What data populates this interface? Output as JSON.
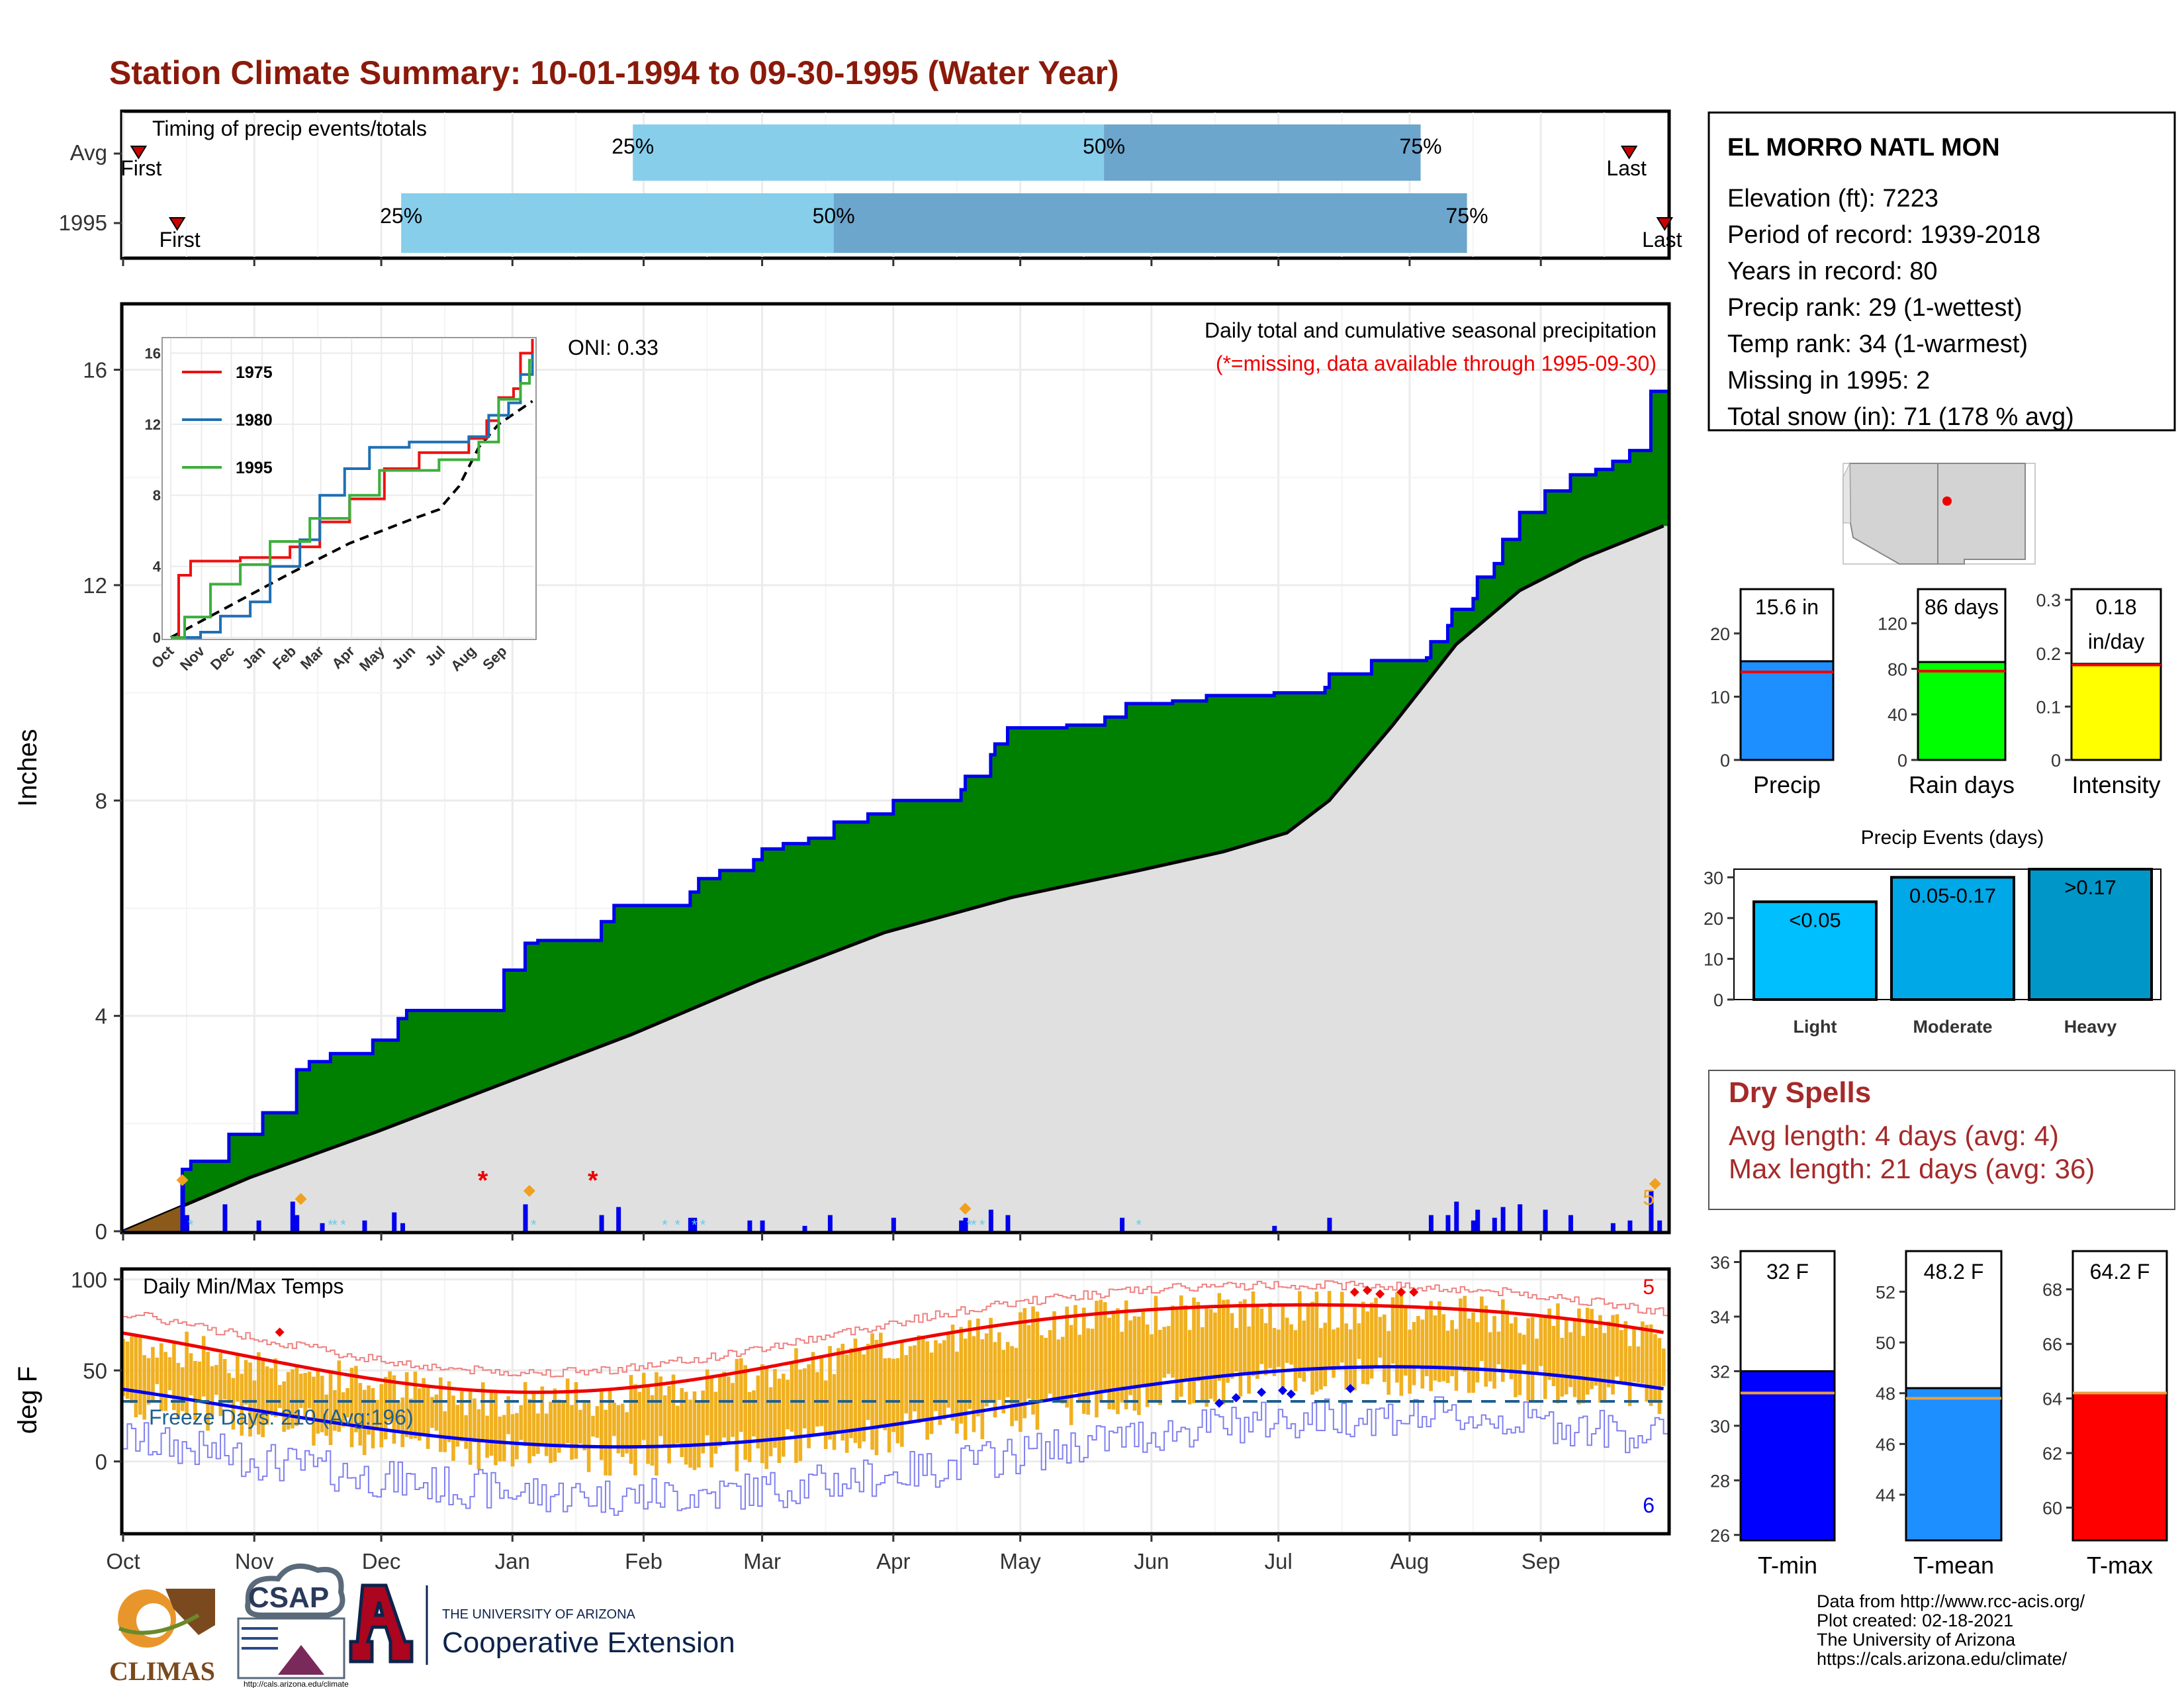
{
  "title": "Station Climate Summary: 10-01-1994 to 09-30-1995 (Water Year)",
  "months": [
    "Oct",
    "Nov",
    "Dec",
    "Jan",
    "Feb",
    "Mar",
    "Apr",
    "May",
    "Jun",
    "Jul",
    "Aug",
    "Sep"
  ],
  "colors": {
    "title": "#8B1A0A",
    "cum_area": "#008000",
    "cum_line": "#0000EE",
    "avg_area": "#E0E0E0",
    "daily_bar": "#0000EE",
    "temp_bar": "#F0B020",
    "tmax_line": "#EE0000",
    "tmin_line": "#0000EE",
    "bar_light": "#00BFFF",
    "bar_mod": "#00A8E8",
    "bar_heavy": "#0096C8",
    "precip": "#1E8FFF",
    "raindays": "#00FF00",
    "intensity": "#FFFF00",
    "tmin": "#0000FF",
    "tmean": "#1E8FFF",
    "tmax": "#FF0000",
    "dry": "#A52A2A"
  },
  "timing": {
    "label": "Timing of precip events/totals",
    "rows": [
      {
        "name": "Avg",
        "first": "First",
        "last": "Last",
        "q25": "25%",
        "q50": "50%",
        "q75": "75%",
        "p_first": 0.01,
        "p25": 0.33,
        "p50": 0.635,
        "p75": 0.84,
        "p_last": 0.975
      },
      {
        "name": "1995",
        "first": "First",
        "last": "Last",
        "q25": "25%",
        "q50": "50%",
        "q75": "75%",
        "p_first": 0.035,
        "p25": 0.18,
        "p50": 0.46,
        "p75": 0.87,
        "p_last": 0.998
      }
    ]
  },
  "precip_chart": {
    "ylabel": "Inches",
    "yticks": [
      0,
      4,
      8,
      12,
      16
    ],
    "ylim": [
      0,
      17.2
    ],
    "title": "Daily total and cumulative seasonal precipitation",
    "subtitle": "(*=missing, data available through 1995-09-30)",
    "oni": "ONI: 0.33",
    "total_snow_corner": "5",
    "cumulative_1995": [
      {
        "day": 0,
        "value": 0
      },
      {
        "day": 14,
        "value": 1.15
      },
      {
        "day": 16,
        "value": 1.3
      },
      {
        "day": 25,
        "value": 1.8
      },
      {
        "day": 33,
        "value": 2.2
      },
      {
        "day": 41,
        "value": 3.0
      },
      {
        "day": 44,
        "value": 3.15
      },
      {
        "day": 49,
        "value": 3.3
      },
      {
        "day": 59,
        "value": 3.55
      },
      {
        "day": 65,
        "value": 3.95
      },
      {
        "day": 67,
        "value": 4.1
      },
      {
        "day": 90,
        "value": 4.85
      },
      {
        "day": 95,
        "value": 5.35
      },
      {
        "day": 98,
        "value": 5.4
      },
      {
        "day": 113,
        "value": 5.75
      },
      {
        "day": 116,
        "value": 6.05
      },
      {
        "day": 134,
        "value": 6.3
      },
      {
        "day": 136,
        "value": 6.55
      },
      {
        "day": 141,
        "value": 6.7
      },
      {
        "day": 149,
        "value": 6.9
      },
      {
        "day": 151,
        "value": 7.1
      },
      {
        "day": 156,
        "value": 7.2
      },
      {
        "day": 162,
        "value": 7.3
      },
      {
        "day": 168,
        "value": 7.6
      },
      {
        "day": 176,
        "value": 7.75
      },
      {
        "day": 182,
        "value": 8.0
      },
      {
        "day": 198,
        "value": 8.2
      },
      {
        "day": 199,
        "value": 8.45
      },
      {
        "day": 205,
        "value": 8.85
      },
      {
        "day": 206,
        "value": 9.05
      },
      {
        "day": 209,
        "value": 9.35
      },
      {
        "day": 223,
        "value": 9.4
      },
      {
        "day": 232,
        "value": 9.55
      },
      {
        "day": 237,
        "value": 9.8
      },
      {
        "day": 248,
        "value": 9.85
      },
      {
        "day": 256,
        "value": 9.95
      },
      {
        "day": 272,
        "value": 10.0
      },
      {
        "day": 284,
        "value": 10.1
      },
      {
        "day": 285,
        "value": 10.35
      },
      {
        "day": 295,
        "value": 10.6
      },
      {
        "day": 308,
        "value": 10.65
      },
      {
        "day": 309,
        "value": 10.95
      },
      {
        "day": 313,
        "value": 11.25
      },
      {
        "day": 314,
        "value": 11.55
      },
      {
        "day": 319,
        "value": 11.75
      },
      {
        "day": 320,
        "value": 12.15
      },
      {
        "day": 324,
        "value": 12.4
      },
      {
        "day": 326,
        "value": 12.85
      },
      {
        "day": 330,
        "value": 13.35
      },
      {
        "day": 336,
        "value": 13.75
      },
      {
        "day": 342,
        "value": 14.05
      },
      {
        "day": 348,
        "value": 14.15
      },
      {
        "day": 352,
        "value": 14.3
      },
      {
        "day": 356,
        "value": 14.5
      },
      {
        "day": 361,
        "value": 15.6
      },
      {
        "day": 364,
        "value": 15.6
      }
    ],
    "average_cumulative": [
      {
        "day": 0,
        "value": 0
      },
      {
        "day": 30,
        "value": 1.0
      },
      {
        "day": 60,
        "value": 1.85
      },
      {
        "day": 90,
        "value": 2.75
      },
      {
        "day": 120,
        "value": 3.65
      },
      {
        "day": 150,
        "value": 4.65
      },
      {
        "day": 180,
        "value": 5.55
      },
      {
        "day": 210,
        "value": 6.2
      },
      {
        "day": 240,
        "value": 6.7
      },
      {
        "day": 260,
        "value": 7.05
      },
      {
        "day": 275,
        "value": 7.4
      },
      {
        "day": 285,
        "value": 8.0
      },
      {
        "day": 300,
        "value": 9.4
      },
      {
        "day": 315,
        "value": 10.9
      },
      {
        "day": 330,
        "value": 11.9
      },
      {
        "day": 345,
        "value": 12.5
      },
      {
        "day": 364,
        "value": 13.1
      }
    ],
    "daily_bars": [
      {
        "day": 14,
        "value": 0.95
      },
      {
        "day": 15,
        "value": 0.3
      },
      {
        "day": 24,
        "value": 0.5
      },
      {
        "day": 32,
        "value": 0.2
      },
      {
        "day": 40,
        "value": 0.55
      },
      {
        "day": 41,
        "value": 0.3
      },
      {
        "day": 47,
        "value": 0.15
      },
      {
        "day": 57,
        "value": 0.2
      },
      {
        "day": 64,
        "value": 0.35
      },
      {
        "day": 66,
        "value": 0.15
      },
      {
        "day": 95,
        "value": 0.5
      },
      {
        "day": 113,
        "value": 0.3
      },
      {
        "day": 117,
        "value": 0.45
      },
      {
        "day": 134,
        "value": 0.25
      },
      {
        "day": 135,
        "value": 0.25
      },
      {
        "day": 148,
        "value": 0.2
      },
      {
        "day": 151,
        "value": 0.2
      },
      {
        "day": 161,
        "value": 0.1
      },
      {
        "day": 167,
        "value": 0.3
      },
      {
        "day": 182,
        "value": 0.25
      },
      {
        "day": 198,
        "value": 0.2
      },
      {
        "day": 199,
        "value": 0.25
      },
      {
        "day": 205,
        "value": 0.4
      },
      {
        "day": 209,
        "value": 0.3
      },
      {
        "day": 236,
        "value": 0.25
      },
      {
        "day": 272,
        "value": 0.1
      },
      {
        "day": 285,
        "value": 0.25
      },
      {
        "day": 309,
        "value": 0.3
      },
      {
        "day": 313,
        "value": 0.3
      },
      {
        "day": 315,
        "value": 0.55
      },
      {
        "day": 319,
        "value": 0.2
      },
      {
        "day": 320,
        "value": 0.4
      },
      {
        "day": 324,
        "value": 0.25
      },
      {
        "day": 326,
        "value": 0.45
      },
      {
        "day": 330,
        "value": 0.5
      },
      {
        "day": 336,
        "value": 0.4
      },
      {
        "day": 342,
        "value": 0.3
      },
      {
        "day": 352,
        "value": 0.15
      },
      {
        "day": 356,
        "value": 0.2
      },
      {
        "day": 361,
        "value": 0.75
      },
      {
        "day": 363,
        "value": 0.2
      }
    ],
    "missing_days": [
      85,
      111
    ],
    "snow_days": [
      14,
      42,
      96,
      199,
      362
    ],
    "inset": {
      "yticks": [
        0,
        4,
        8,
        12,
        16
      ],
      "legend": [
        "1975",
        "1980",
        "1995"
      ],
      "series_colors": [
        "#EE1111",
        "#1F6FB4",
        "#3CAF3C"
      ],
      "months": [
        "Oct",
        "Nov",
        "Dec",
        "Jan",
        "Feb",
        "Mar",
        "Apr",
        "May",
        "Jun",
        "Jul",
        "Aug",
        "Sep"
      ]
    }
  },
  "temp_chart": {
    "ylabel": "deg F",
    "yticks": [
      0,
      50,
      100
    ],
    "ylim": [
      -39,
      105
    ],
    "title": "Daily Min/Max Temps",
    "freeze": "Freeze Days: 210 (Avg:196)",
    "max_count": "5",
    "min_count": "6"
  },
  "station": {
    "name": "EL MORRO NATL MON",
    "lines": [
      "Elevation (ft): 7223",
      "Period of record: 1939-2018",
      "Years in record: 80",
      "Precip rank: 29 (1-wettest)",
      "Temp rank: 34 (1-warmest)",
      "Missing in 1995: 2",
      "Total snow (in): 71 (178 % avg)"
    ]
  },
  "summary_bars": [
    {
      "label": "Precip",
      "value_text": "15.6 in",
      "value": 15.6,
      "avg": 13.9,
      "yticks": [
        0,
        10,
        20
      ],
      "ymax": 27,
      "color_key": "precip"
    },
    {
      "label": "Rain days",
      "value_text": "86 days",
      "value": 86,
      "avg": 78,
      "yticks": [
        0,
        40,
        80,
        120
      ],
      "ymax": 150,
      "color_key": "raindays"
    },
    {
      "label": "Intensity",
      "value_text": "0.18",
      "value_text2": "in/day",
      "value": 0.18,
      "avg": 0.178,
      "yticks": [
        0.0,
        0.1,
        0.2,
        0.3
      ],
      "ymax": 0.32,
      "color_key": "intensity"
    }
  ],
  "events": {
    "title": "Precip Events (days)",
    "yticks": [
      0,
      10,
      20,
      30
    ],
    "ymax": 32,
    "bars": [
      {
        "label": "Light",
        "range": "<0.05",
        "value": 24,
        "color_key": "bar_light"
      },
      {
        "label": "Moderate",
        "range": "0.05-0.17",
        "value": 30,
        "color_key": "bar_mod"
      },
      {
        "label": "Heavy",
        "range": ">0.17",
        "value": 32,
        "color_key": "bar_heavy"
      }
    ]
  },
  "dry_spells": {
    "title": "Dry Spells",
    "avg": "Avg length: 4 days (avg: 4)",
    "max": "Max length: 21 days (avg: 36)"
  },
  "temp_bars": [
    {
      "label": "T-min",
      "value_text": "32 F",
      "value": 32,
      "avg": 31.2,
      "yticks": [
        26,
        28,
        30,
        32,
        34,
        36
      ],
      "ymin": 25.8,
      "ymax": 36.4,
      "color_key": "tmin"
    },
    {
      "label": "T-mean",
      "value_text": "48.2 F",
      "value": 48.2,
      "avg": 47.8,
      "yticks": [
        44,
        46,
        48,
        50,
        52
      ],
      "ymin": 42.2,
      "ymax": 53.6,
      "color_key": "tmean"
    },
    {
      "label": "T-max",
      "value_text": "64.2 F",
      "value": 64.2,
      "avg": 64.2,
      "yticks": [
        60,
        62,
        64,
        66,
        68
      ],
      "ymin": 58.8,
      "ymax": 69.4,
      "color_key": "tmax"
    }
  ],
  "footer": {
    "lines": [
      "Data from http://www.rcc-acis.org/",
      "Plot created: 02-18-2021",
      "The University of Arizona",
      "https://cals.arizona.edu/climate/"
    ],
    "climas": "CLIMAS",
    "csap": "CSAP",
    "csap_url": "http://cals.arizona.edu/climate",
    "ua_top": "THE UNIVERSITY OF ARIZONA",
    "ua_bottom": "Cooperative Extension"
  }
}
